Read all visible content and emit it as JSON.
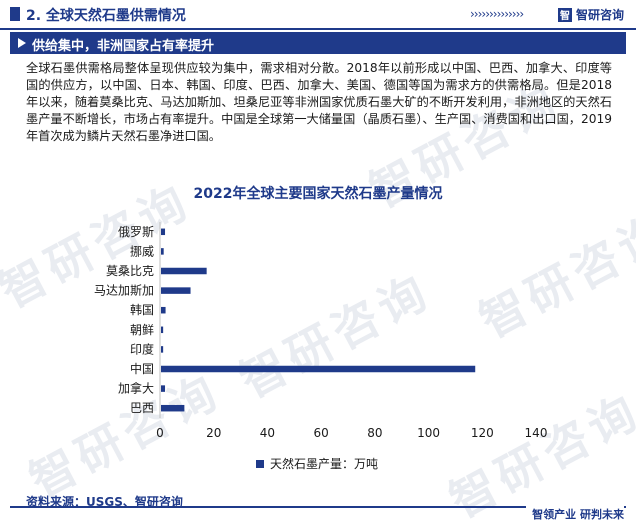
{
  "header": {
    "section_title": "2. 全球天然石墨供需情况",
    "chevrons": "››››››››››››››",
    "brand_logo": "智",
    "brand_name": "智研咨询"
  },
  "banner": {
    "text": "供给集中，非洲国家占有率提升"
  },
  "paragraph": "全球石墨供需格局整体呈现供应较为集中，需求相对分散。2018年以前形成以中国、巴西、加拿大、印度等国的供应方，以中国、日本、韩国、印度、巴西、加拿大、美国、德国等国为需求方的供需格局。但是2018年以来，随着莫桑比克、马达加斯加、坦桑尼亚等非洲国家优质石墨大矿的不断开发利用，非洲地区的天然石墨产量不断增长，市场占有率提升。中国是全球第一大储量国（晶质石墨）、生产国、消费国和出口国，2019年首次成为鳞片天然石墨净进口国。",
  "watermark": "智研咨询",
  "chart_data": {
    "type": "bar",
    "orientation": "horizontal",
    "title": "2022年全球主要国家天然石墨产量情况",
    "categories": [
      "俄罗斯",
      "挪威",
      "莫桑比克",
      "马达加斯加",
      "韩国",
      "朝鲜",
      "印度",
      "中国",
      "加拿大",
      "巴西"
    ],
    "series": [
      {
        "name": "天然石墨产量：万吨",
        "values": [
          1.5,
          1.0,
          17,
          11,
          1.7,
          0.8,
          0.8,
          117,
          1.5,
          8.7
        ],
        "color": "#1f3a8a"
      }
    ],
    "xlim": [
      0,
      140
    ],
    "xticks": [
      0,
      20,
      40,
      60,
      80,
      100,
      120,
      140
    ],
    "legend_position": "bottom",
    "grid": false
  },
  "footer": {
    "source": "资料来源：USGS、智研咨询",
    "slogan": "智领产业  研判未来"
  }
}
